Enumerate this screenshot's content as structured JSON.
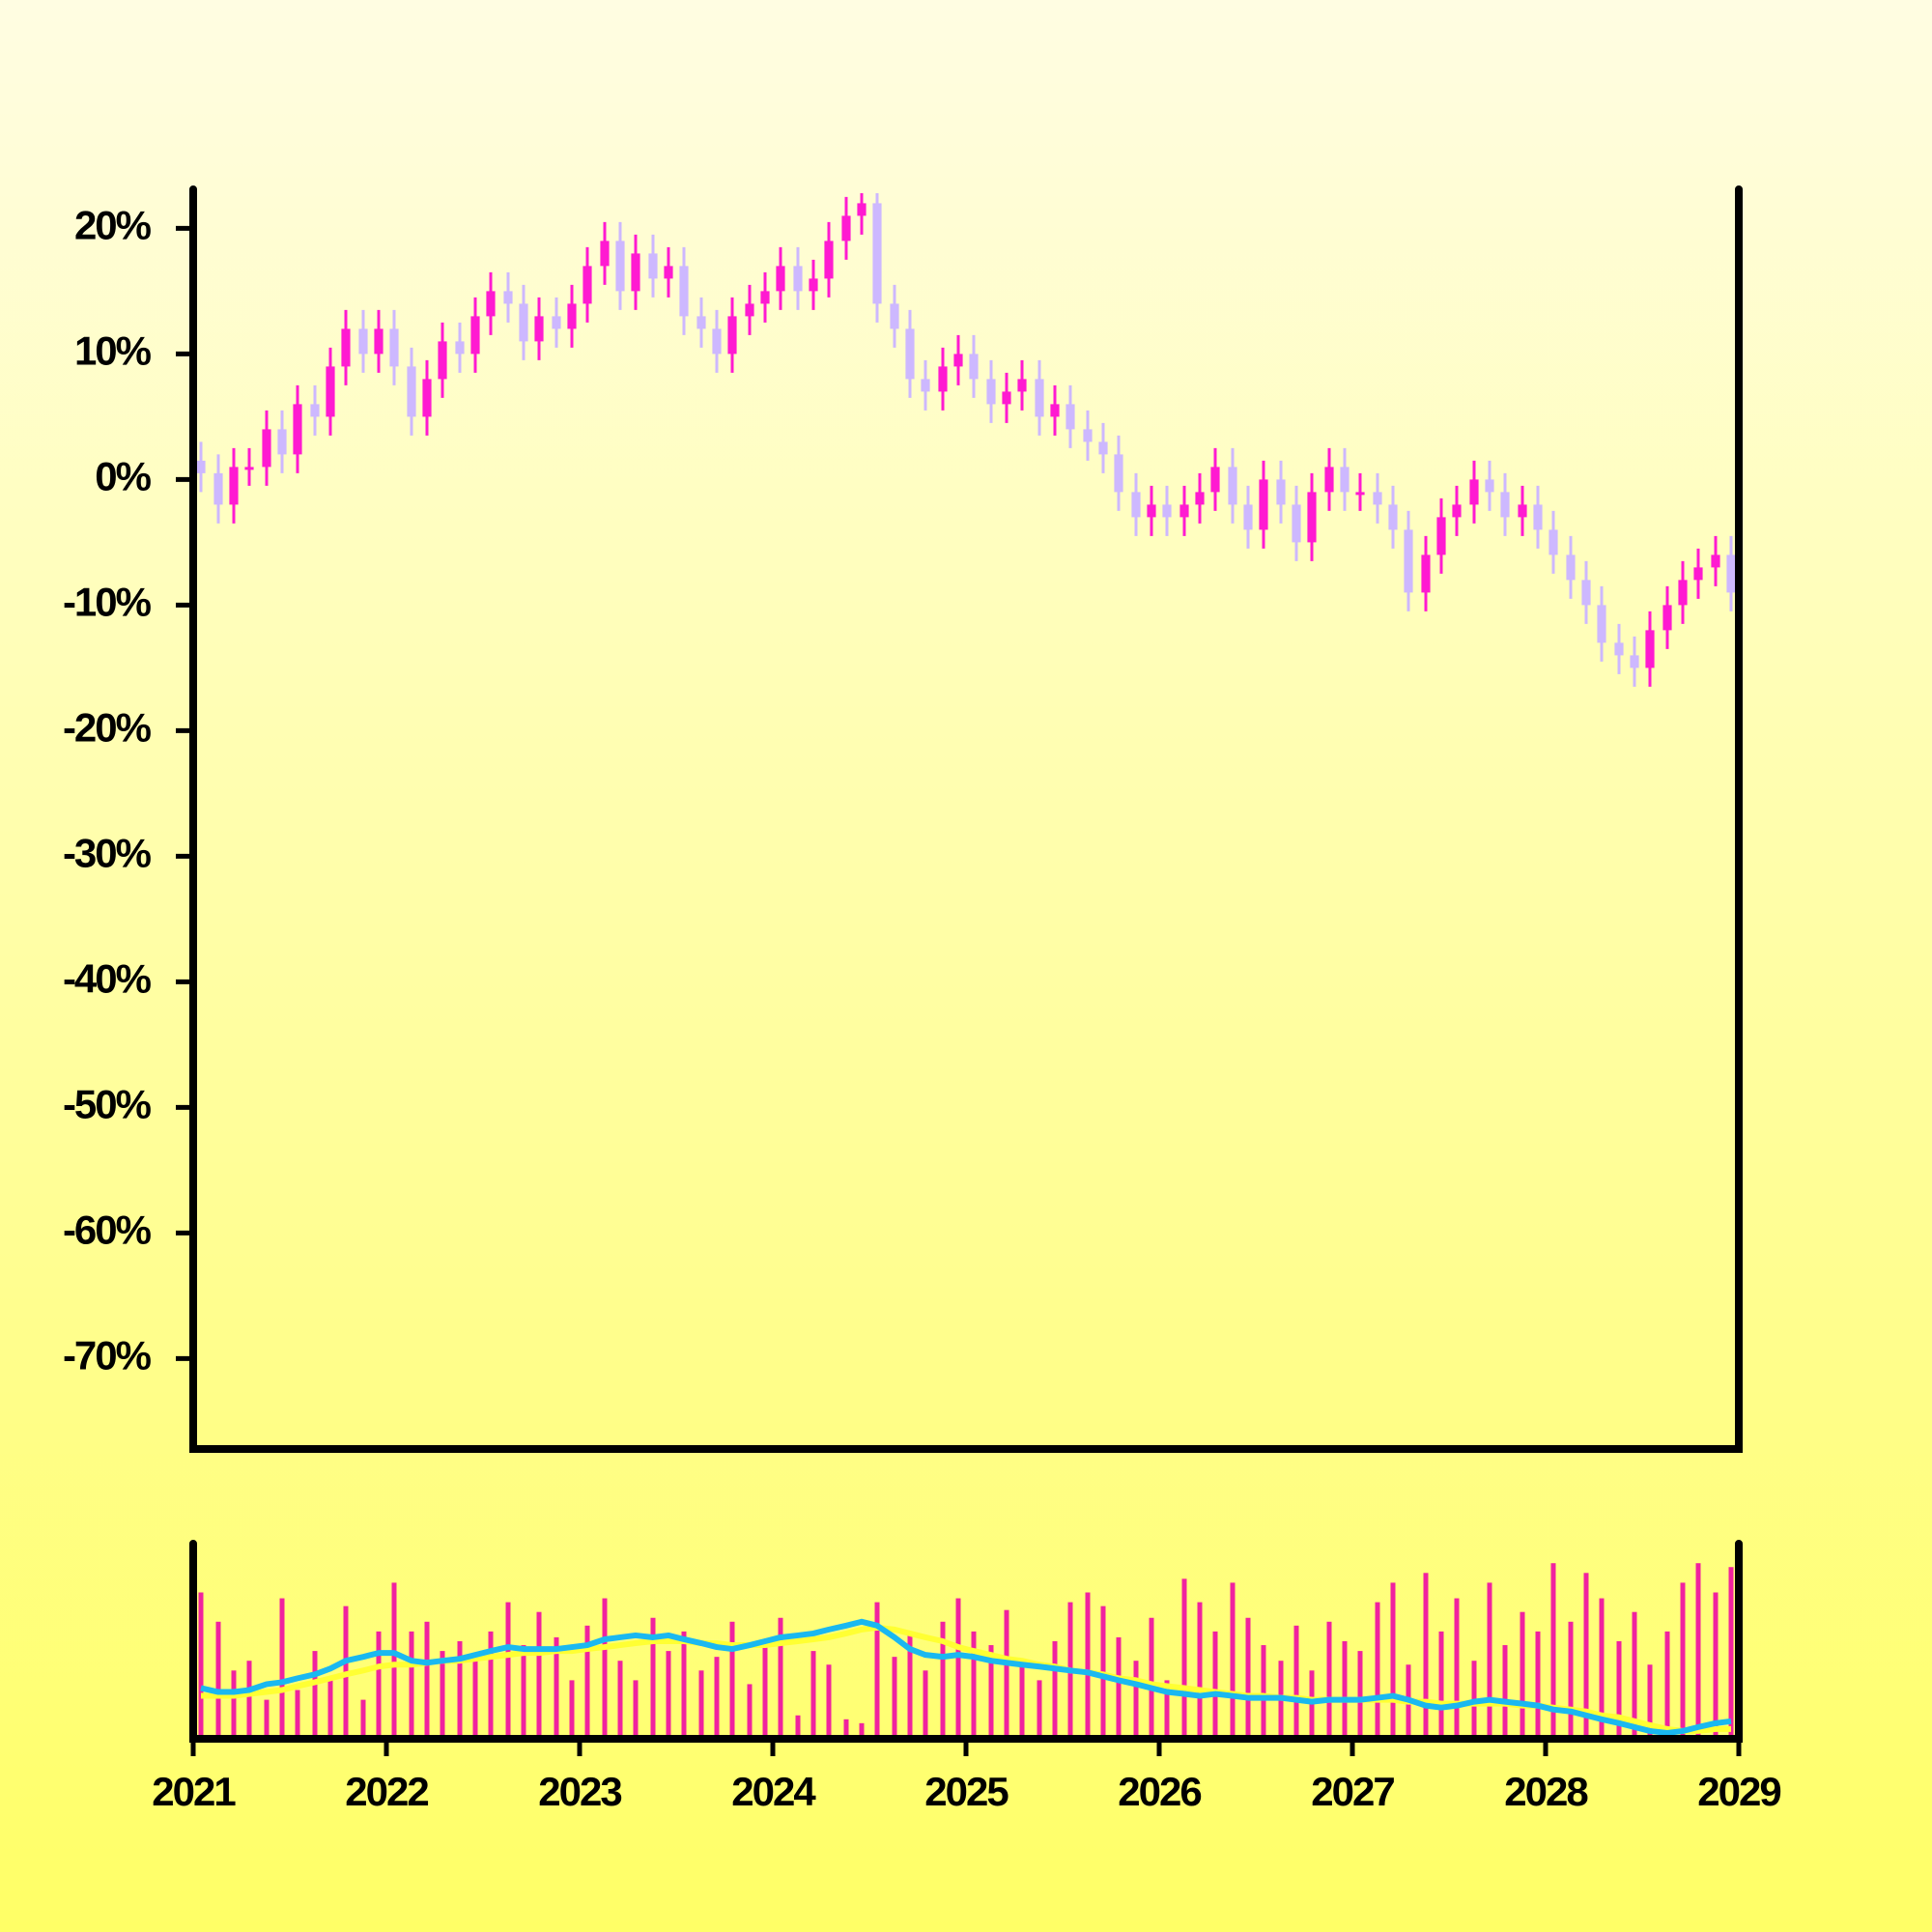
{
  "chart_data": [
    {
      "type": "candlestick",
      "up_color": "#ff1ad1",
      "down_color": "#cdb8ff",
      "x": [
        2021.04,
        2021.13,
        2021.21,
        2021.29,
        2021.38,
        2021.46,
        2021.54,
        2021.63,
        2021.71,
        2021.79,
        2021.88,
        2021.96,
        2022.04,
        2022.13,
        2022.21,
        2022.29,
        2022.38,
        2022.46,
        2022.54,
        2022.63,
        2022.71,
        2022.79,
        2022.88,
        2022.96,
        2023.04,
        2023.13,
        2023.21,
        2023.29,
        2023.38,
        2023.46,
        2023.54,
        2023.63,
        2023.71,
        2023.79,
        2023.88,
        2023.96,
        2024.04,
        2024.13,
        2024.21,
        2024.29,
        2024.38,
        2024.46,
        2024.54,
        2024.63,
        2024.71,
        2024.79,
        2024.88,
        2024.96,
        2025.04,
        2025.13,
        2025.21,
        2025.29,
        2025.38,
        2025.46,
        2025.54,
        2025.63,
        2025.71,
        2025.79,
        2025.88,
        2025.96,
        2026.04,
        2026.13,
        2026.21,
        2026.29,
        2026.38,
        2026.46,
        2026.54,
        2026.63,
        2026.71,
        2026.79,
        2026.88,
        2026.96,
        2027.04,
        2027.13,
        2027.21,
        2027.29,
        2027.38,
        2027.46,
        2027.54,
        2027.63,
        2027.71,
        2027.79,
        2027.88,
        2027.96,
        2028.04,
        2028.13,
        2028.21,
        2028.29,
        2028.38,
        2028.46,
        2028.54,
        2028.63,
        2028.71,
        2028.79,
        2028.88,
        2028.96
      ],
      "open": [
        1.5,
        0.5,
        -2,
        1,
        1,
        4,
        2,
        6,
        5,
        9,
        12,
        10,
        12,
        9,
        5,
        8,
        11,
        10,
        13,
        15,
        14,
        11,
        13,
        12,
        14,
        17,
        19,
        15,
        18,
        16,
        17,
        13,
        12,
        10,
        13,
        14,
        15,
        17,
        15,
        16,
        19,
        21,
        22,
        14,
        12,
        8,
        7,
        9,
        10,
        8,
        6,
        7,
        8,
        5,
        6,
        4,
        3,
        2,
        -1,
        -3,
        -2,
        -3,
        -2,
        -1,
        1,
        -2,
        -4,
        0,
        -2,
        -5,
        -1,
        1,
        -1,
        -1,
        -2,
        -4,
        -9,
        -6,
        -3,
        -2,
        0,
        -1,
        -3,
        -2,
        -4,
        -6,
        -8,
        -10,
        -13,
        -14,
        -15,
        -12,
        -10,
        -8,
        -7,
        -6
      ],
      "high": [
        3,
        2,
        2.5,
        2.5,
        5.5,
        5.5,
        7.5,
        7.5,
        10.5,
        13.5,
        13.5,
        13.5,
        13.5,
        10.5,
        9.5,
        12.5,
        12.5,
        14.5,
        16.5,
        16.5,
        15.5,
        14.5,
        14.5,
        15.5,
        18.5,
        20.5,
        20.5,
        19.5,
        19.5,
        18.5,
        18.5,
        14.5,
        13.5,
        14.5,
        15.5,
        16.5,
        18.5,
        18.5,
        17.5,
        20.5,
        22.5,
        23.5,
        23.5,
        15.5,
        13.5,
        9.5,
        10.5,
        11.5,
        11.5,
        9.5,
        8.5,
        9.5,
        9.5,
        7.5,
        7.5,
        5.5,
        4.5,
        3.5,
        0.5,
        -0.5,
        -0.5,
        -0.5,
        0.5,
        2.5,
        2.5,
        -0.5,
        1.5,
        1.5,
        -0.5,
        0.5,
        2.5,
        2.5,
        0.5,
        0.5,
        -0.5,
        -2.5,
        -4.5,
        -1.5,
        -0.5,
        1.5,
        1.5,
        0.5,
        -0.5,
        -0.5,
        -2.5,
        -4.5,
        -6.5,
        -8.5,
        -11.5,
        -12.5,
        -10.5,
        -8.5,
        -6.5,
        -5.5,
        -4.5,
        -4.5
      ],
      "low": [
        -1,
        -3.5,
        -3.5,
        -0.5,
        -0.5,
        0.5,
        0.5,
        3.5,
        3.5,
        7.5,
        8.5,
        8.5,
        7.5,
        3.5,
        3.5,
        6.5,
        8.5,
        8.5,
        11.5,
        12.5,
        9.5,
        9.5,
        10.5,
        10.5,
        12.5,
        15.5,
        13.5,
        13.5,
        14.5,
        14.5,
        11.5,
        10.5,
        8.5,
        8.5,
        11.5,
        12.5,
        13.5,
        13.5,
        13.5,
        14.5,
        17.5,
        19.5,
        12.5,
        10.5,
        6.5,
        5.5,
        5.5,
        7.5,
        6.5,
        4.5,
        4.5,
        5.5,
        3.5,
        3.5,
        2.5,
        1.5,
        0.5,
        -2.5,
        -4.5,
        -4.5,
        -4.5,
        -4.5,
        -3.5,
        -2.5,
        -3.5,
        -5.5,
        -5.5,
        -3.5,
        -6.5,
        -6.5,
        -2.5,
        -2.5,
        -2.5,
        -3.5,
        -5.5,
        -10.5,
        -10.5,
        -7.5,
        -4.5,
        -3.5,
        -2.5,
        -4.5,
        -4.5,
        -5.5,
        -7.5,
        -9.5,
        -11.5,
        -14.5,
        -15.5,
        -16.5,
        -16.5,
        -13.5,
        -11.5,
        -9.5,
        -8.5,
        -10.5
      ],
      "close": [
        0.5,
        -2,
        1,
        1,
        4,
        2,
        6,
        5,
        9,
        12,
        10,
        12,
        9,
        5,
        8,
        11,
        10,
        13,
        15,
        14,
        11,
        13,
        12,
        14,
        17,
        19,
        15,
        18,
        16,
        17,
        13,
        12,
        10,
        13,
        14,
        15,
        17,
        15,
        16,
        19,
        21,
        22,
        14,
        12,
        8,
        7,
        9,
        10,
        8,
        6,
        7,
        8,
        5,
        6,
        4,
        3,
        2,
        -1,
        -3,
        -2,
        -3,
        -2,
        -1,
        1,
        -2,
        -4,
        0,
        -2,
        -5,
        -1,
        1,
        -1,
        -1,
        -2,
        -4,
        -9,
        -6,
        -3,
        -2,
        0,
        -1,
        -3,
        -2,
        -4,
        -6,
        -8,
        -10,
        -13,
        -14,
        -15,
        -12,
        -10,
        -8,
        -7,
        -6,
        -9
      ],
      "xlim": [
        2021,
        2029
      ],
      "ylim": [
        -77.2,
        22.8
      ],
      "yticks": [
        {
          "value": 20,
          "label": "20%"
        },
        {
          "value": 10,
          "label": "10%"
        },
        {
          "value": 0,
          "label": "0%"
        },
        {
          "value": -10,
          "label": "-10%"
        },
        {
          "value": -20,
          "label": "-20%"
        },
        {
          "value": -30,
          "label": "-30%"
        },
        {
          "value": -40,
          "label": "-40%"
        },
        {
          "value": -50,
          "label": "-50%"
        },
        {
          "value": -60,
          "label": "-60%"
        },
        {
          "value": -70,
          "label": "-70%"
        }
      ]
    },
    {
      "type": "bar",
      "color": "#f0229f",
      "values": [
        75,
        60,
        35,
        40,
        20,
        72,
        25,
        45,
        30,
        68,
        20,
        55,
        80,
        55,
        60,
        45,
        50,
        40,
        55,
        70,
        48,
        65,
        52,
        30,
        58,
        72,
        40,
        30,
        62,
        45,
        55,
        35,
        42,
        60,
        28,
        50,
        62,
        12,
        45,
        38,
        10,
        8,
        70,
        42,
        55,
        35,
        60,
        72,
        55,
        48,
        66,
        38,
        30,
        50,
        70,
        75,
        68,
        52,
        40,
        62,
        30,
        82,
        70,
        55,
        80,
        62,
        48,
        40,
        58,
        35,
        60,
        50,
        45,
        70,
        80,
        38,
        85,
        55,
        72,
        40,
        80,
        48,
        65,
        55,
        90,
        60,
        85,
        72,
        50,
        65,
        38,
        55,
        80,
        90,
        75,
        88
      ],
      "lines": [
        {
          "color": "#ffff33",
          "values": [
            22,
            22,
            22,
            23,
            24,
            25,
            27,
            29,
            31,
            33,
            35,
            37,
            38,
            38,
            39,
            40,
            40,
            41,
            42,
            43,
            44,
            44,
            45,
            45,
            46,
            47,
            48,
            49,
            50,
            50,
            50,
            49,
            49,
            48,
            48,
            48,
            49,
            50,
            51,
            52,
            54,
            56,
            57,
            56,
            54,
            52,
            50,
            47,
            45,
            43,
            41,
            40,
            38,
            37,
            35,
            34,
            33,
            31,
            30,
            28,
            27,
            26,
            25,
            24,
            23,
            22,
            22,
            21,
            21,
            20,
            20,
            20,
            20,
            20,
            20,
            19,
            19,
            18,
            18,
            18,
            18,
            18,
            17,
            17,
            16,
            15,
            14,
            12,
            11,
            9,
            7,
            5,
            4,
            4,
            5,
            5
          ]
        },
        {
          "color": "#1ab8f0",
          "values": [
            26,
            24,
            24,
            25,
            28,
            29,
            31,
            33,
            36,
            40,
            42,
            44,
            44,
            40,
            39,
            40,
            41,
            43,
            45,
            47,
            46,
            46,
            46,
            47,
            48,
            51,
            52,
            53,
            52,
            53,
            51,
            49,
            47,
            46,
            48,
            50,
            52,
            53,
            54,
            56,
            58,
            60,
            58,
            52,
            46,
            43,
            42,
            43,
            42,
            40,
            39,
            38,
            37,
            36,
            35,
            34,
            32,
            30,
            28,
            26,
            24,
            23,
            22,
            23,
            22,
            21,
            21,
            21,
            20,
            19,
            20,
            20,
            20,
            21,
            22,
            20,
            17,
            16,
            17,
            19,
            20,
            19,
            18,
            17,
            15,
            14,
            12,
            10,
            8,
            6,
            4,
            3,
            4,
            6,
            8,
            9
          ]
        }
      ],
      "xlim": [
        2021,
        2029
      ],
      "ylim": [
        0,
        100
      ],
      "xticks": [
        2021,
        2022,
        2023,
        2024,
        2025,
        2026,
        2027,
        2028,
        2029
      ]
    }
  ]
}
